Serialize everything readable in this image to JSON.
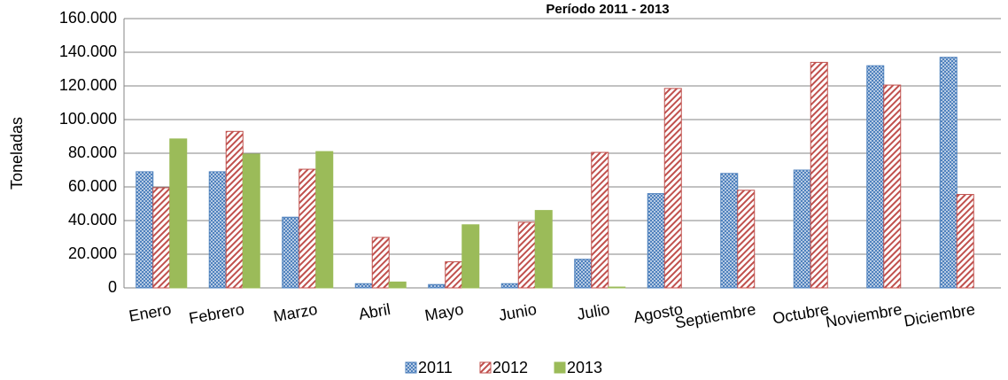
{
  "chart_data": {
    "type": "bar",
    "title": "Período  2011 - 2013",
    "y_label": "Toneladas",
    "categories": [
      "Enero",
      "Febrero",
      "Marzo",
      "Abril",
      "Mayo",
      "Junio",
      "Julio",
      "Agosto",
      "Septiembre",
      "Octubre",
      "Noviembre",
      "Diciembre"
    ],
    "series": [
      {
        "name": "2011",
        "color": "#4f81bd",
        "pattern": "dots",
        "values": [
          69000,
          69000,
          42000,
          2500,
          2000,
          2500,
          17000,
          56000,
          68000,
          70000,
          132000,
          137000
        ]
      },
      {
        "name": "2012",
        "color": "#c0504d",
        "pattern": "hatch",
        "values": [
          59500,
          93000,
          70500,
          30000,
          15500,
          39000,
          80500,
          118500,
          58000,
          134000,
          120500,
          55500
        ]
      },
      {
        "name": "2013",
        "color": "#9bbb59",
        "pattern": "solid",
        "values": [
          88500,
          79500,
          81000,
          3500,
          37500,
          46000,
          500,
          null,
          null,
          null,
          null,
          null
        ]
      }
    ],
    "ylim": [
      0,
      160000
    ],
    "yticks": [
      0,
      {
        "value": 20000,
        "label": "20.000"
      },
      {
        "value": 40000,
        "label": "40.000"
      },
      {
        "value": 60000,
        "label": "60.000"
      },
      {
        "value": 80000,
        "label": "80.000"
      },
      {
        "value": 100000,
        "label": "100.000"
      },
      {
        "value": 120000,
        "label": "120.000"
      },
      {
        "value": 140000,
        "label": "140.000"
      },
      {
        "value": 160000,
        "label": "160.000"
      }
    ],
    "grid": true,
    "legend": "bottom"
  }
}
